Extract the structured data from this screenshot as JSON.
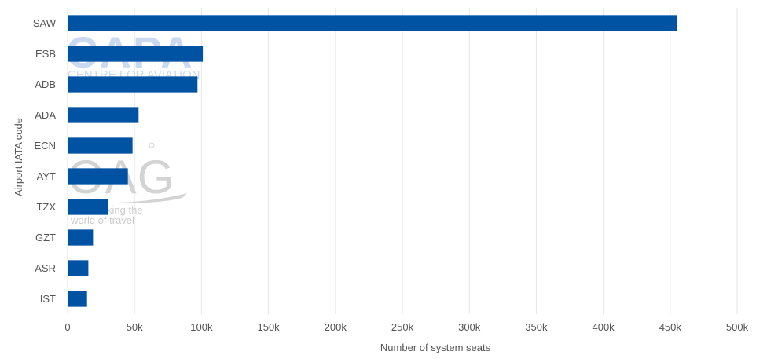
{
  "chart_data": {
    "type": "bar",
    "orientation": "horizontal",
    "categories": [
      "SAW",
      "ESB",
      "ADB",
      "ADA",
      "ECN",
      "AYT",
      "TZX",
      "GZT",
      "ASR",
      "IST"
    ],
    "series": [
      {
        "values": [
          455000,
          101000,
          97000,
          53000,
          48500,
          45000,
          30000,
          19000,
          15500,
          14500
        ]
      }
    ],
    "xlabel": "Number of system seats",
    "ylabel": "Airport IATA code",
    "xlim": [
      0,
      500000
    ],
    "x_ticks": [
      0,
      50000,
      100000,
      150000,
      200000,
      250000,
      300000,
      350000,
      400000,
      450000,
      500000
    ],
    "x_tick_labels": [
      "0",
      "50k",
      "100k",
      "150k",
      "200k",
      "250k",
      "300k",
      "350k",
      "400k",
      "450k",
      "500k"
    ],
    "grid": true,
    "bar_color": "#0052a3"
  },
  "watermarks": {
    "capa_logo": "CAPA",
    "capa_tagline": "CENTRE FOR AVIATION",
    "oag_logo": "OAG",
    "oag_tagline_line1": "king the",
    "oag_tagline_line2": "world of travel"
  }
}
